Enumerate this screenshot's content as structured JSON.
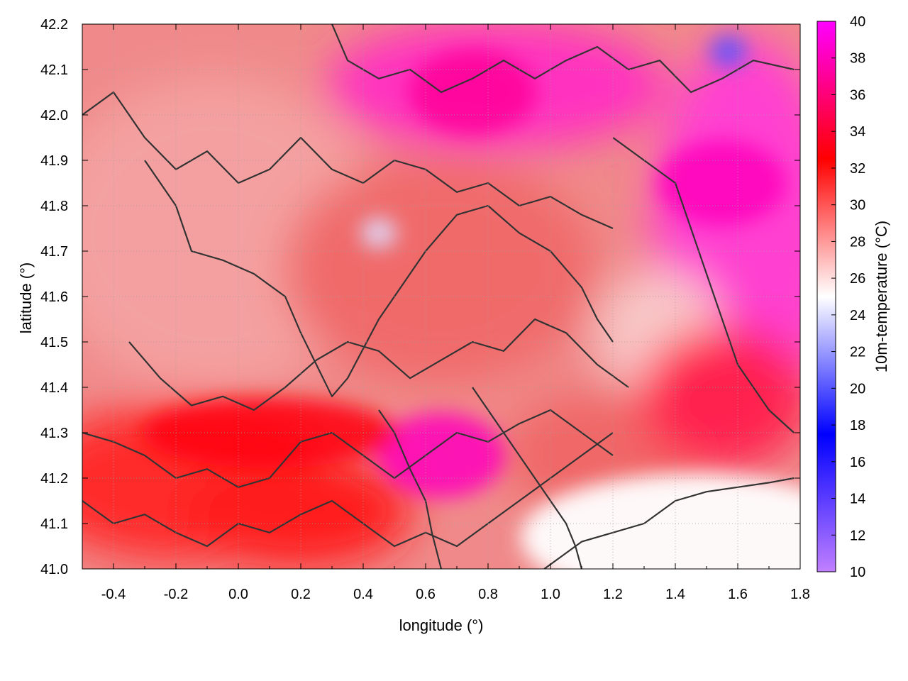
{
  "chart_data": {
    "type": "heatmap",
    "title": "",
    "xlabel": "longitude (°)",
    "ylabel": "latitude (°)",
    "colorbar_label": "10m-temperature (°C)",
    "xlim": [
      -0.5,
      1.8
    ],
    "ylim": [
      41.0,
      42.2
    ],
    "clim": [
      10,
      40
    ],
    "x_ticks": [
      "-0.4",
      "-0.2",
      "0.0",
      "0.2",
      "0.4",
      "0.6",
      "0.8",
      "1.0",
      "1.2",
      "1.4",
      "1.6",
      "1.8"
    ],
    "x_tick_values": [
      -0.4,
      -0.2,
      0.0,
      0.2,
      0.4,
      0.6,
      0.8,
      1.0,
      1.2,
      1.4,
      1.6,
      1.8
    ],
    "y_ticks": [
      "41.0",
      "41.1",
      "41.2",
      "41.3",
      "41.4",
      "41.5",
      "41.6",
      "41.7",
      "41.8",
      "41.9",
      "42.0",
      "42.1",
      "42.2"
    ],
    "y_tick_values": [
      41.0,
      41.1,
      41.2,
      41.3,
      41.4,
      41.5,
      41.6,
      41.7,
      41.8,
      41.9,
      42.0,
      42.1,
      42.2
    ],
    "colorbar_ticks": [
      "10",
      "12",
      "14",
      "16",
      "18",
      "20",
      "22",
      "24",
      "26",
      "28",
      "30",
      "32",
      "34",
      "36",
      "38",
      "40"
    ],
    "colorbar_tick_values": [
      10,
      12,
      14,
      16,
      18,
      20,
      22,
      24,
      26,
      28,
      30,
      32,
      34,
      36,
      38,
      40
    ],
    "grid": true,
    "colormap": [
      "#c080ff",
      "#0000ff",
      "#ffffff",
      "#ff0000",
      "#ff00ff"
    ],
    "field_features": [
      {
        "kind": "cool-spot",
        "lon": 0.45,
        "lat": 41.74,
        "value": 24
      },
      {
        "kind": "cool-spot",
        "lon": 1.57,
        "lat": 42.14,
        "value": 20
      },
      {
        "kind": "sea",
        "lon": 1.45,
        "lat": 41.07,
        "value": 25
      },
      {
        "kind": "hot-region",
        "lon": 1.55,
        "lat": 41.85,
        "value": 38
      },
      {
        "kind": "hot-region",
        "lon": 0.75,
        "lat": 42.05,
        "value": 37
      },
      {
        "kind": "hot-region",
        "lon": 0.65,
        "lat": 41.25,
        "value": 38
      },
      {
        "kind": "warm-band",
        "lon": 0.1,
        "lat": 41.3,
        "value": 33
      }
    ],
    "contours": [
      [
        [
          -0.5,
          42.0
        ],
        [
          -0.4,
          42.05
        ],
        [
          -0.3,
          41.95
        ],
        [
          -0.2,
          41.88
        ],
        [
          -0.1,
          41.92
        ],
        [
          0.0,
          41.85
        ],
        [
          0.1,
          41.88
        ],
        [
          0.2,
          41.95
        ],
        [
          0.3,
          41.88
        ],
        [
          0.4,
          41.85
        ],
        [
          0.5,
          41.9
        ],
        [
          0.6,
          41.88
        ],
        [
          0.7,
          41.83
        ],
        [
          0.8,
          41.85
        ],
        [
          0.9,
          41.8
        ],
        [
          1.0,
          41.82
        ],
        [
          1.1,
          41.78
        ],
        [
          1.2,
          41.75
        ]
      ],
      [
        [
          -0.3,
          41.9
        ],
        [
          -0.2,
          41.8
        ],
        [
          -0.15,
          41.7
        ],
        [
          -0.05,
          41.68
        ],
        [
          0.05,
          41.65
        ],
        [
          0.15,
          41.6
        ],
        [
          0.2,
          41.52
        ],
        [
          0.25,
          41.45
        ],
        [
          0.3,
          41.38
        ],
        [
          0.35,
          41.42
        ],
        [
          0.45,
          41.55
        ],
        [
          0.55,
          41.65
        ],
        [
          0.6,
          41.7
        ],
        [
          0.7,
          41.78
        ],
        [
          0.8,
          41.8
        ],
        [
          0.9,
          41.74
        ],
        [
          1.0,
          41.7
        ],
        [
          1.1,
          41.62
        ],
        [
          1.15,
          41.55
        ],
        [
          1.2,
          41.5
        ]
      ],
      [
        [
          -0.35,
          41.5
        ],
        [
          -0.25,
          41.42
        ],
        [
          -0.15,
          41.36
        ],
        [
          -0.05,
          41.38
        ],
        [
          0.05,
          41.35
        ],
        [
          0.15,
          41.4
        ],
        [
          0.25,
          41.46
        ],
        [
          0.35,
          41.5
        ],
        [
          0.45,
          41.48
        ],
        [
          0.55,
          41.42
        ],
        [
          0.65,
          41.46
        ],
        [
          0.75,
          41.5
        ],
        [
          0.85,
          41.48
        ],
        [
          0.95,
          41.55
        ],
        [
          1.05,
          41.52
        ],
        [
          1.15,
          41.45
        ],
        [
          1.25,
          41.4
        ]
      ],
      [
        [
          -0.5,
          41.3
        ],
        [
          -0.4,
          41.28
        ],
        [
          -0.3,
          41.25
        ],
        [
          -0.2,
          41.2
        ],
        [
          -0.1,
          41.22
        ],
        [
          0.0,
          41.18
        ],
        [
          0.1,
          41.2
        ],
        [
          0.2,
          41.28
        ],
        [
          0.3,
          41.3
        ],
        [
          0.4,
          41.25
        ],
        [
          0.5,
          41.2
        ],
        [
          0.6,
          41.25
        ],
        [
          0.7,
          41.3
        ],
        [
          0.8,
          41.28
        ],
        [
          0.9,
          41.32
        ],
        [
          1.0,
          41.35
        ],
        [
          1.1,
          41.3
        ],
        [
          1.2,
          41.25
        ]
      ],
      [
        [
          -0.5,
          41.15
        ],
        [
          -0.4,
          41.1
        ],
        [
          -0.3,
          41.12
        ],
        [
          -0.2,
          41.08
        ],
        [
          -0.1,
          41.05
        ],
        [
          0.0,
          41.1
        ],
        [
          0.1,
          41.08
        ],
        [
          0.2,
          41.12
        ],
        [
          0.3,
          41.15
        ],
        [
          0.4,
          41.1
        ],
        [
          0.5,
          41.05
        ],
        [
          0.6,
          41.08
        ],
        [
          0.7,
          41.05
        ],
        [
          0.8,
          41.1
        ],
        [
          0.9,
          41.15
        ],
        [
          1.0,
          41.2
        ],
        [
          1.1,
          41.25
        ],
        [
          1.2,
          41.3
        ]
      ],
      [
        [
          0.98,
          41.0
        ],
        [
          1.1,
          41.06
        ],
        [
          1.2,
          41.08
        ],
        [
          1.3,
          41.1
        ],
        [
          1.4,
          41.15
        ],
        [
          1.5,
          41.17
        ],
        [
          1.6,
          41.18
        ],
        [
          1.7,
          41.19
        ],
        [
          1.78,
          41.2
        ]
      ],
      [
        [
          0.3,
          42.2
        ],
        [
          0.35,
          42.12
        ],
        [
          0.45,
          42.08
        ],
        [
          0.55,
          42.1
        ],
        [
          0.65,
          42.05
        ],
        [
          0.75,
          42.08
        ],
        [
          0.85,
          42.12
        ],
        [
          0.95,
          42.08
        ],
        [
          1.05,
          42.12
        ],
        [
          1.15,
          42.15
        ],
        [
          1.25,
          42.1
        ],
        [
          1.35,
          42.12
        ],
        [
          1.45,
          42.05
        ],
        [
          1.55,
          42.08
        ],
        [
          1.65,
          42.12
        ],
        [
          1.78,
          42.1
        ]
      ],
      [
        [
          1.2,
          41.95
        ],
        [
          1.3,
          41.9
        ],
        [
          1.4,
          41.85
        ],
        [
          1.45,
          41.75
        ],
        [
          1.5,
          41.65
        ],
        [
          1.55,
          41.55
        ],
        [
          1.6,
          41.45
        ],
        [
          1.65,
          41.4
        ],
        [
          1.7,
          41.35
        ],
        [
          1.78,
          41.3
        ]
      ],
      [
        [
          0.75,
          41.4
        ],
        [
          0.8,
          41.35
        ],
        [
          0.85,
          41.3
        ],
        [
          0.9,
          41.25
        ],
        [
          0.95,
          41.2
        ],
        [
          1.0,
          41.15
        ],
        [
          1.05,
          41.1
        ],
        [
          1.08,
          41.05
        ],
        [
          1.1,
          41.0
        ]
      ],
      [
        [
          0.45,
          41.35
        ],
        [
          0.5,
          41.3
        ],
        [
          0.55,
          41.22
        ],
        [
          0.6,
          41.15
        ],
        [
          0.62,
          41.08
        ],
        [
          0.65,
          41.0
        ]
      ]
    ]
  }
}
